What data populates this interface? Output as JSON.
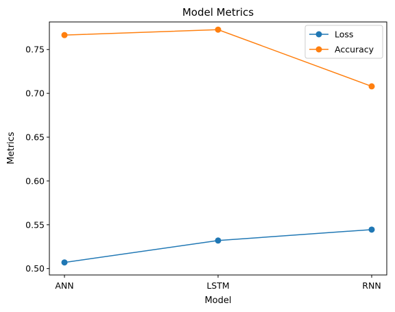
{
  "chart_data": {
    "type": "line",
    "title": "Model Metrics",
    "xlabel": "Model",
    "ylabel": "Metrics",
    "categories": [
      "ANN",
      "LSTM",
      "RNN"
    ],
    "series": [
      {
        "name": "Loss",
        "color": "#1f77b4",
        "values": [
          0.507,
          0.532,
          0.5445
        ]
      },
      {
        "name": "Accuracy",
        "color": "#ff7f0e",
        "values": [
          0.7665,
          0.7727,
          0.708
        ]
      }
    ],
    "ylim": [
      0.4927,
      0.7815
    ],
    "yticks": [
      0.5,
      0.55,
      0.6,
      0.65,
      0.7,
      0.75
    ],
    "ytick_labels": [
      "0.50",
      "0.55",
      "0.60",
      "0.65",
      "0.70",
      "0.75"
    ],
    "grid": false,
    "legend_position": "top-right"
  }
}
